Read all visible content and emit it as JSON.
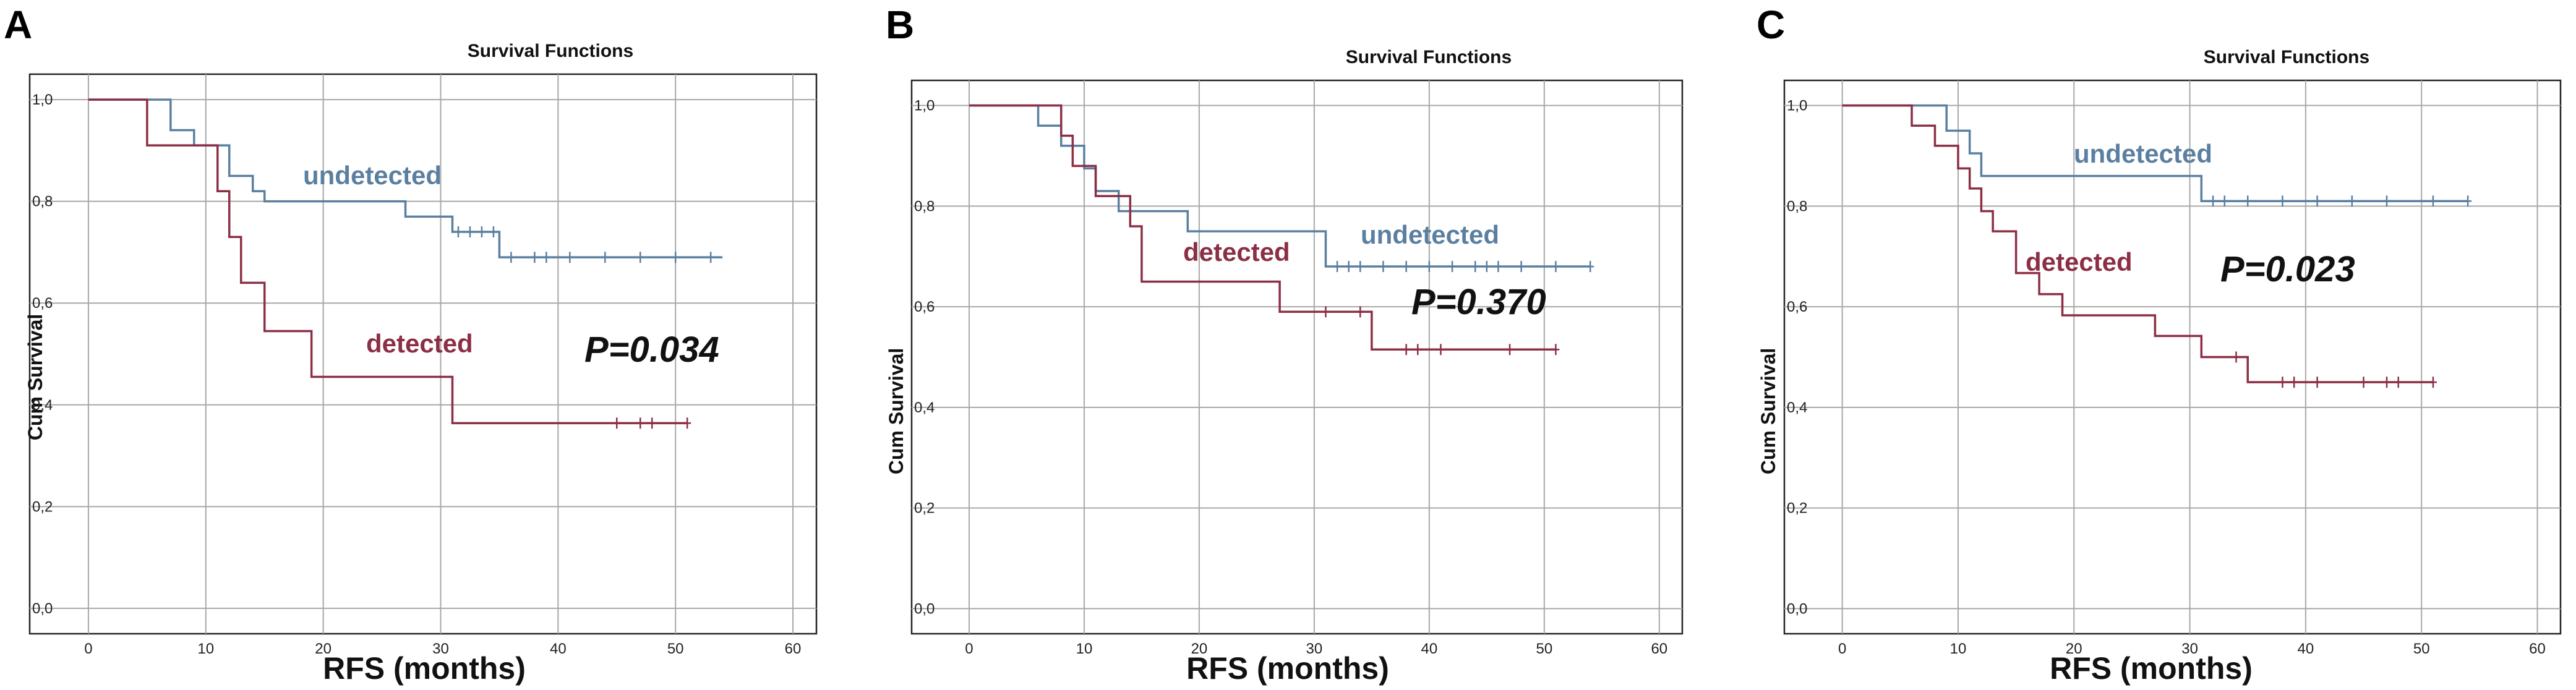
{
  "figure": {
    "colors": {
      "undetected": "#5a7fa0",
      "detected": "#8c2f45"
    }
  },
  "chart_data": [
    {
      "type": "line",
      "panel": "A",
      "title": "Survival Functions",
      "xlabel": "RFS (months)",
      "ylabel": "Cum Survival",
      "xlim": [
        -5,
        62
      ],
      "ylim": [
        -0.05,
        1.05
      ],
      "xticks": [
        0,
        10,
        20,
        30,
        40,
        50,
        60
      ],
      "xtick_labels": [
        "0",
        "10",
        "20",
        "30",
        "40",
        "50",
        "60"
      ],
      "yticks": [
        0,
        0.2,
        0.4,
        0.6,
        0.8,
        1.0
      ],
      "ytick_labels": [
        "0,0",
        "0,2",
        "0,4",
        "0,6",
        "0,8",
        "1,0"
      ],
      "grid": true,
      "pvalue": "P=0.034",
      "series": [
        {
          "name": "undetected",
          "label": "undetected",
          "steps": [
            [
              0,
              1.0
            ],
            [
              7,
              0.94
            ],
            [
              9,
              0.91
            ],
            [
              12,
              0.85
            ],
            [
              14,
              0.82
            ],
            [
              15,
              0.8
            ],
            [
              27,
              0.77
            ],
            [
              31,
              0.74
            ],
            [
              35,
              0.69
            ],
            [
              54,
              0.69
            ]
          ],
          "censored": [
            [
              31.5,
              0.74
            ],
            [
              32.5,
              0.74
            ],
            [
              33.5,
              0.74
            ],
            [
              34.5,
              0.74
            ],
            [
              36,
              0.69
            ],
            [
              38,
              0.69
            ],
            [
              39,
              0.69
            ],
            [
              41,
              0.69
            ],
            [
              44,
              0.69
            ],
            [
              47,
              0.69
            ],
            [
              50,
              0.69
            ],
            [
              53,
              0.69
            ]
          ]
        },
        {
          "name": "detected",
          "label": "detected",
          "steps": [
            [
              0,
              1.0
            ],
            [
              5,
              0.91
            ],
            [
              11,
              0.82
            ],
            [
              12,
              0.73
            ],
            [
              13,
              0.64
            ],
            [
              15,
              0.545
            ],
            [
              19,
              0.455
            ],
            [
              31,
              0.364
            ],
            [
              51,
              0.364
            ]
          ],
          "censored": [
            [
              45,
              0.364
            ],
            [
              47,
              0.364
            ],
            [
              48,
              0.364
            ],
            [
              51,
              0.364
            ]
          ]
        }
      ]
    },
    {
      "type": "line",
      "panel": "B",
      "title": "Survival Functions",
      "xlabel": "RFS (months)",
      "ylabel": "Cum Survival",
      "xlim": [
        -5,
        62
      ],
      "ylim": [
        -0.05,
        1.05
      ],
      "xticks": [
        0,
        10,
        20,
        30,
        40,
        50,
        60
      ],
      "xtick_labels": [
        "0",
        "10",
        "20",
        "30",
        "40",
        "50",
        "60"
      ],
      "yticks": [
        0,
        0.2,
        0.4,
        0.6,
        0.8,
        1.0
      ],
      "ytick_labels": [
        "0,0",
        "0,2",
        "0,4",
        "0,6",
        "0,8",
        "1,0"
      ],
      "grid": true,
      "pvalue": "P=0.370",
      "series": [
        {
          "name": "undetected",
          "label": "undetected",
          "steps": [
            [
              0,
              1.0
            ],
            [
              6,
              0.96
            ],
            [
              8,
              0.92
            ],
            [
              10,
              0.875
            ],
            [
              11,
              0.83
            ],
            [
              13,
              0.79
            ],
            [
              19,
              0.75
            ],
            [
              31,
              0.68
            ],
            [
              54,
              0.68
            ]
          ],
          "censored": [
            [
              32,
              0.68
            ],
            [
              33,
              0.68
            ],
            [
              34,
              0.68
            ],
            [
              36,
              0.68
            ],
            [
              38,
              0.68
            ],
            [
              40,
              0.68
            ],
            [
              42,
              0.68
            ],
            [
              44,
              0.68
            ],
            [
              45,
              0.68
            ],
            [
              46,
              0.68
            ],
            [
              48,
              0.68
            ],
            [
              51,
              0.68
            ],
            [
              54,
              0.68
            ]
          ]
        },
        {
          "name": "detected",
          "label": "detected",
          "steps": [
            [
              0,
              1.0
            ],
            [
              8,
              0.94
            ],
            [
              9,
              0.88
            ],
            [
              11,
              0.82
            ],
            [
              14,
              0.76
            ],
            [
              15,
              0.65
            ],
            [
              27,
              0.59
            ],
            [
              35,
              0.515
            ],
            [
              51,
              0.515
            ]
          ],
          "censored": [
            [
              31,
              0.59
            ],
            [
              34,
              0.59
            ],
            [
              38,
              0.515
            ],
            [
              39,
              0.515
            ],
            [
              41,
              0.515
            ],
            [
              47,
              0.515
            ],
            [
              51,
              0.515
            ]
          ]
        }
      ]
    },
    {
      "type": "line",
      "panel": "C",
      "title": "Survival Functions",
      "xlabel": "RFS (months)",
      "ylabel": "Cum Survival",
      "xlim": [
        -5,
        62
      ],
      "ylim": [
        -0.05,
        1.05
      ],
      "xticks": [
        0,
        10,
        20,
        30,
        40,
        50,
        60
      ],
      "xtick_labels": [
        "0",
        "10",
        "20",
        "30",
        "40",
        "50",
        "60"
      ],
      "yticks": [
        0,
        0.2,
        0.4,
        0.6,
        0.8,
        1.0
      ],
      "ytick_labels": [
        "0,0",
        "0,2",
        "0,4",
        "0,6",
        "0,8",
        "1,0"
      ],
      "grid": true,
      "pvalue": "P=0.023",
      "series": [
        {
          "name": "undetected",
          "label": "undetected",
          "steps": [
            [
              0,
              1.0
            ],
            [
              9,
              0.95
            ],
            [
              11,
              0.905
            ],
            [
              12,
              0.86
            ],
            [
              31,
              0.81
            ],
            [
              54,
              0.81
            ]
          ],
          "censored": [
            [
              32,
              0.81
            ],
            [
              33,
              0.81
            ],
            [
              35,
              0.81
            ],
            [
              38,
              0.81
            ],
            [
              41,
              0.81
            ],
            [
              44,
              0.81
            ],
            [
              47,
              0.81
            ],
            [
              51,
              0.81
            ],
            [
              54,
              0.81
            ]
          ]
        },
        {
          "name": "detected",
          "label": "detected",
          "steps": [
            [
              0,
              1.0
            ],
            [
              6,
              0.96
            ],
            [
              8,
              0.92
            ],
            [
              10,
              0.875
            ],
            [
              11,
              0.835
            ],
            [
              12,
              0.79
            ],
            [
              13,
              0.75
            ],
            [
              15,
              0.667
            ],
            [
              17,
              0.625
            ],
            [
              19,
              0.583
            ],
            [
              27,
              0.542
            ],
            [
              31,
              0.5
            ],
            [
              35,
              0.45
            ],
            [
              51,
              0.45
            ]
          ],
          "censored": [
            [
              34,
              0.5
            ],
            [
              38,
              0.45
            ],
            [
              39,
              0.45
            ],
            [
              41,
              0.45
            ],
            [
              45,
              0.45
            ],
            [
              47,
              0.45
            ],
            [
              48,
              0.45
            ],
            [
              51,
              0.45
            ]
          ]
        }
      ]
    }
  ]
}
